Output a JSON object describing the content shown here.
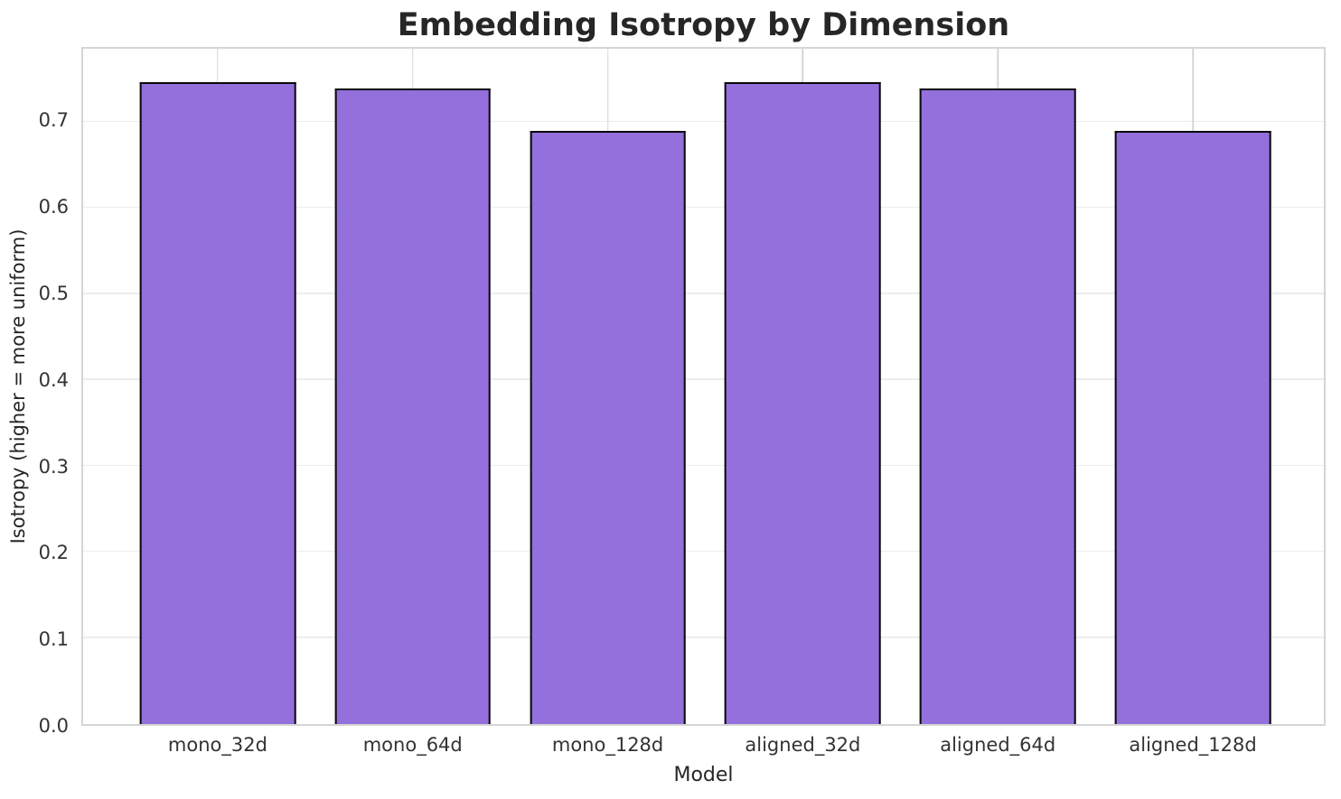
{
  "figure": {
    "kind": "matplotlib-bar-chart"
  },
  "chart_data": {
    "type": "bar",
    "title": "Embedding Isotropy by Dimension",
    "xlabel": "Model",
    "ylabel": "Isotropy (higher = more uniform)",
    "categories": [
      "mono_32d",
      "mono_64d",
      "mono_128d",
      "aligned_32d",
      "aligned_64d",
      "aligned_128d"
    ],
    "values": [
      0.746,
      0.739,
      0.69,
      0.746,
      0.739,
      0.69
    ],
    "ylim": [
      0,
      0.785
    ],
    "yticks": [
      0.0,
      0.1,
      0.2,
      0.3,
      0.4,
      0.5,
      0.6,
      0.7
    ],
    "ytick_format_decimals": 1,
    "grid": "both",
    "legend": null,
    "bar_color": "#9370DB",
    "bar_edge_color": "#0a0a0a",
    "grid_color_horizontal": "#ececec",
    "grid_color_vertical": "#d6d6d6",
    "spine_color": "#d5d5d5",
    "text_color": "#262626"
  }
}
